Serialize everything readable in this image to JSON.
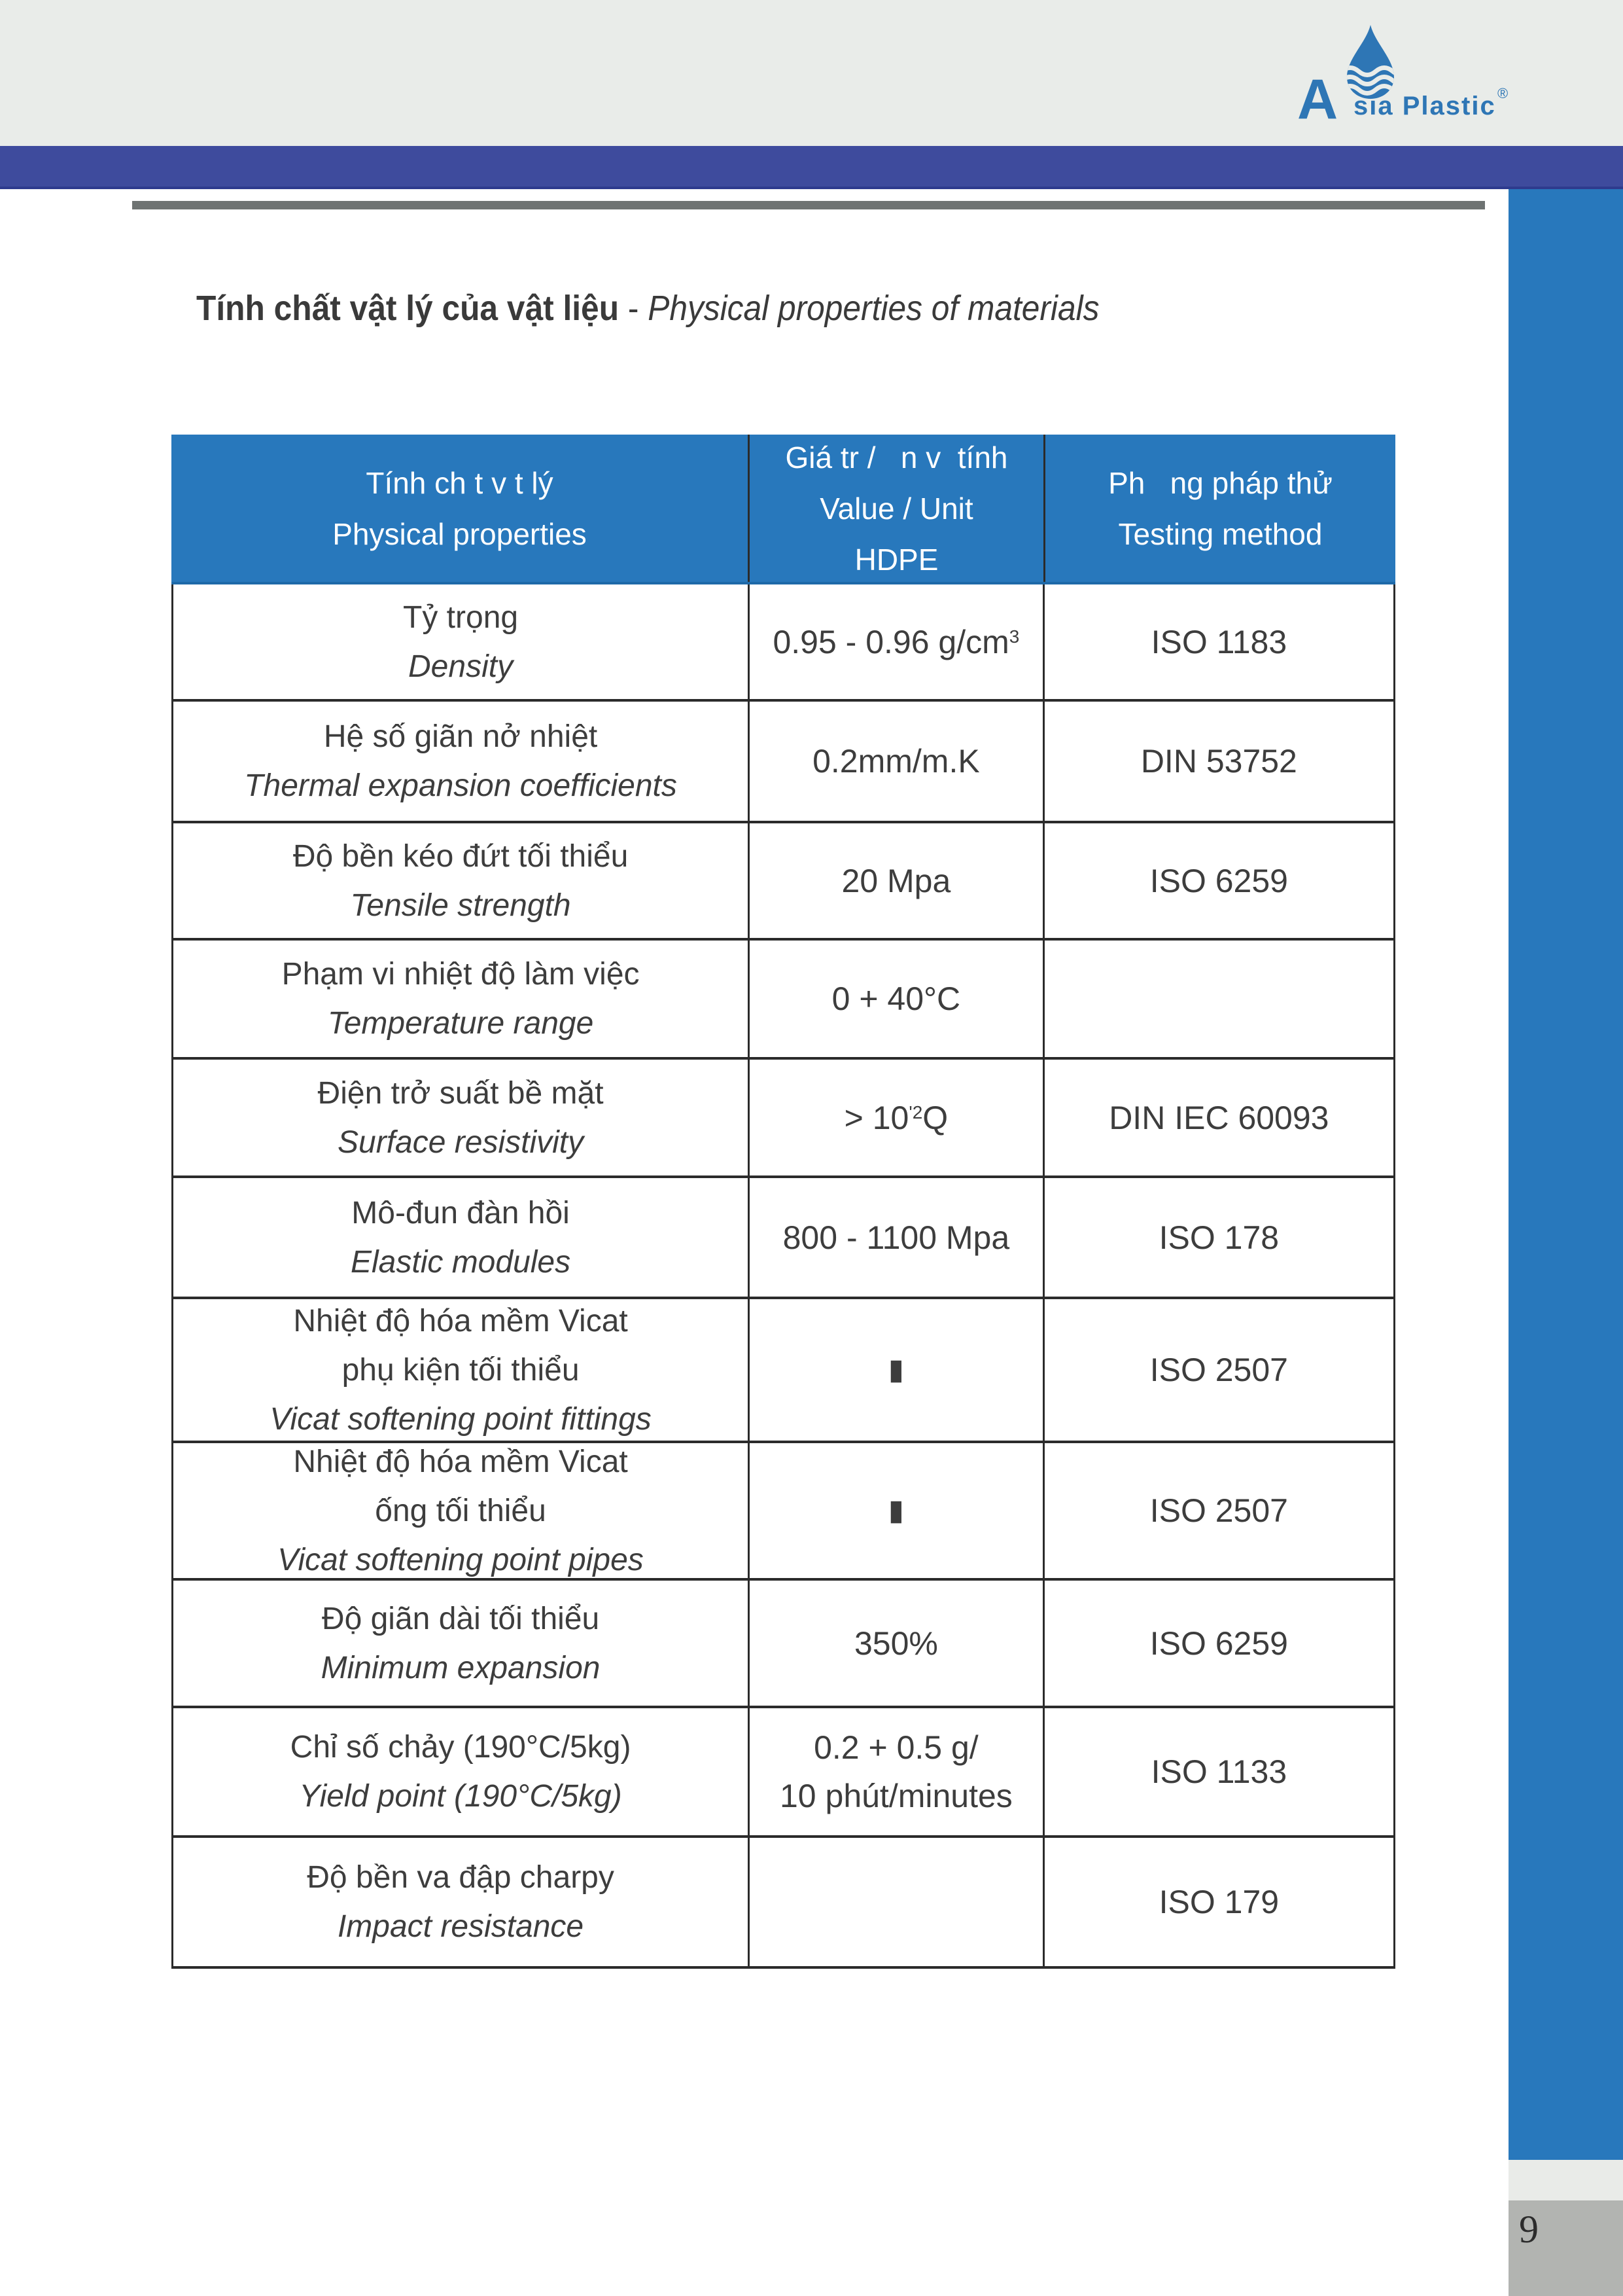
{
  "logo": {
    "a": "A",
    "rest": "sia Plastic",
    "reg": "®"
  },
  "title": {
    "vi": "Tính chất vật lý của vật liệu",
    "sep": " - ",
    "en": "Physical properties of materials"
  },
  "page": {
    "number": "9"
  },
  "colors": {
    "accent_blue": "#2878bc",
    "navy_band": "#3e4b9d",
    "gray_bar": "#6e7372",
    "top_strip_bg": "#e9ece9",
    "page_tab_gray": "#b2b4b1",
    "logo_blue": "#2e76b5",
    "border_black": "#2b2b2b"
  },
  "table": {
    "header": {
      "col1": {
        "line1": "Tính ch t v t lý",
        "line2": "Physical properties"
      },
      "col2": {
        "line1": "Giá tr /   n v  tính",
        "line2": "Value / Unit",
        "line3": "HDPE"
      },
      "col3": {
        "line1": "Ph   ng pháp thử",
        "line2": "Testing method"
      }
    },
    "rows": [
      {
        "vi": "Tỷ trọng",
        "en": "Density",
        "value1": "0.95 - 0.96 g/cm",
        "value_sup": "3",
        "value_tail": "",
        "value2": "",
        "method": "ISO 1183"
      },
      {
        "vi": "Hệ số giãn nở nhiệt",
        "en": "Thermal expansion coefficients",
        "value1": "0.2mm/m.K",
        "value_sup": "",
        "value_tail": "",
        "value2": "",
        "method": "DIN 53752"
      },
      {
        "vi": "Độ bền kéo đứt tối thiểu",
        "en": "Tensile strength",
        "value1": "20 Mpa",
        "value_sup": "",
        "value_tail": "",
        "value2": "",
        "method": "ISO 6259"
      },
      {
        "vi": "Phạm vi nhiệt độ làm việc",
        "en": "Temperature range",
        "value1": "0 + 40°C",
        "value_sup": "",
        "value_tail": "",
        "value2": "",
        "method": ""
      },
      {
        "vi": "Điện trở suất bề mặt",
        "en": "Surface resistivity",
        "value1": "> 10",
        "value_sup": "'2",
        "value_tail": "Q",
        "value2": "",
        "method": "DIN IEC 60093"
      },
      {
        "vi": "Mô-đun đàn hồi",
        "en": "Elastic modules",
        "value1": "800 - 1100 Mpa",
        "value_sup": "",
        "value_tail": "",
        "value2": "",
        "method": "ISO 178"
      },
      {
        "vi": "Nhiệt độ hóa mềm Vicat",
        "vi2": "phụ kiện tối thiểu",
        "en": "Vicat softening point fittings",
        "value1": "▮",
        "value_sup": "",
        "value_tail": "",
        "value2": "",
        "method": "ISO 2507"
      },
      {
        "vi": "Nhiệt độ hóa mềm Vicat",
        "vi2": "ống tối thiểu",
        "en": "Vicat softening point pipes",
        "value1": "▮",
        "value_sup": "",
        "value_tail": "",
        "value2": "",
        "method": "ISO 2507"
      },
      {
        "vi": "Độ giãn dài tối thiểu",
        "en": "Minimum expansion",
        "value1": "350%",
        "value_sup": "",
        "value_tail": "",
        "value2": "",
        "method": "ISO 6259"
      },
      {
        "vi": "Chỉ số chảy (190°C/5kg)",
        "en": "Yield point (190°C/5kg)",
        "value1": "0.2 + 0.5 g/",
        "value_sup": "",
        "value_tail": "",
        "value2": "10 phút/minutes",
        "method": "ISO 1133"
      },
      {
        "vi": "Độ bền va đập charpy",
        "en": "Impact resistance",
        "value1": "",
        "value_sup": "",
        "value_tail": "",
        "value2": "",
        "method": "ISO 179"
      }
    ]
  }
}
